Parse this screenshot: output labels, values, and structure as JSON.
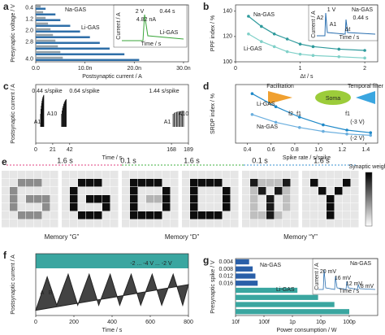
{
  "chart_data": [
    {
      "type": "hbar",
      "label": "a",
      "xlabel": "Postsynaptic current / A",
      "ylabel": "Presynaptic voltage / V",
      "categories": [
        "0.4",
        null,
        "1.2",
        null,
        "2.0",
        null,
        "2.8",
        null,
        null,
        "4.0"
      ],
      "series": [
        {
          "name": "Na-GAS",
          "color": "#9aa3a8",
          "values": [
            1e-09,
            1.5e-09,
            2e-09,
            2.5e-09,
            3e-09,
            3.5e-09,
            4e-09,
            4.5e-09,
            5e-09,
            5.5e-09
          ]
        },
        {
          "name": "Li-GAS",
          "color": "#2f6fa8",
          "values": [
            2e-09,
            4e-09,
            5e-09,
            7e-09,
            9e-09,
            1.1e-08,
            1.3e-08,
            1.5e-08,
            1.8e-08,
            2.1e-08
          ]
        }
      ],
      "xlim": [
        0,
        3.1e-08
      ],
      "xticks": [
        {
          "value": 0,
          "label": "0.0"
        },
        {
          "value": 1e-08,
          "label": "10.0n"
        },
        {
          "value": 2e-08,
          "label": "20.0n"
        },
        {
          "value": 3e-08,
          "label": "30.0n"
        }
      ],
      "annotations": [
        "2 V",
        "0.44 s",
        "4.82 nA",
        "Li-GAS",
        "Current / A",
        "Time / s"
      ]
    },
    {
      "type": "line",
      "label": "b",
      "xlabel": "Δt / s",
      "ylabel": "PPF index / %",
      "x": [
        0.2,
        0.4,
        0.6,
        0.8,
        1.0,
        1.2,
        1.6,
        2.0
      ],
      "series": [
        {
          "name": "Na-GAS",
          "color": "#2f9a9c",
          "values": [
            136,
            128,
            122,
            118,
            114,
            112,
            110,
            109
          ]
        },
        {
          "name": "Li-GAS",
          "color": "#7fd0c8",
          "values": [
            122,
            116,
            112,
            108,
            106,
            105,
            104,
            103
          ]
        }
      ],
      "xlim": [
        0,
        2.2
      ],
      "xticks": [
        0,
        1,
        2
      ],
      "ylim": [
        100,
        145
      ],
      "yticks": [
        100,
        120,
        140
      ],
      "annotations": [
        "Na-GAS",
        "1 V",
        "0.44 s",
        "A1",
        "A2",
        "Δt",
        "Current / A",
        "Time / s"
      ]
    },
    {
      "type": "spikes",
      "label": "c",
      "xlabel": "Time / s",
      "ylabel": "Postsynaptic current / A",
      "x": [
        6,
        6.44,
        6.88,
        7.32,
        7.76,
        8.2,
        8.64,
        9.08,
        9.52,
        9.96,
        32,
        32.64,
        33.28,
        33.92,
        34.56,
        35.2,
        35.84,
        36.48,
        37.12,
        37.76,
        170,
        171.44,
        172.88,
        174.32,
        175.76,
        177.2,
        178.64,
        180.08,
        181.52,
        182.96
      ],
      "values": [
        4e-09,
        5.5e-09,
        6.5e-09,
        7.3e-09,
        8e-09,
        8.5e-09,
        9e-09,
        9.3e-09,
        9.6e-09,
        9.8e-09,
        4e-09,
        5e-09,
        5.8e-09,
        6.4e-09,
        7e-09,
        7.4e-09,
        7.8e-09,
        8.1e-09,
        8.3e-09,
        8.5e-09,
        4e-09,
        4.3e-09,
        4.5e-09,
        4.6e-09,
        4.7e-09,
        4.8e-09,
        4.8e-09,
        4.9e-09,
        4.9e-09,
        5e-09
      ],
      "color": "#111111",
      "xlim": [
        0,
        189
      ],
      "ylim": [
        0,
        1.2e-08
      ],
      "xticks": [
        0,
        21,
        42,
        168,
        189
      ],
      "annotations": [
        "0.44 s/spike",
        "0.64 s/spike",
        "1.44 s/spike",
        "A1",
        "A10",
        "A1",
        "A10"
      ]
    },
    {
      "type": "line",
      "label": "d",
      "xlabel": "Spike rate / s/spike",
      "ylabel": "SRDP index / %",
      "x": [
        0.44,
        0.64,
        0.84,
        1.04,
        1.24,
        1.44
      ],
      "series": [
        {
          "name": "Li-GAS",
          "color": "#1e88c8",
          "values": [
            128,
            118,
            110,
            104,
            100,
            98
          ]
        },
        {
          "name": "Na-GAS",
          "color": "#6aaede",
          "values": [
            112,
            106,
            102,
            99,
            97,
            96
          ]
        }
      ],
      "xlim": [
        0.3,
        1.5
      ],
      "xticks": [
        0.4,
        0.6,
        0.8,
        {
          "value": 1,
          "label": "1.0"
        },
        1.2,
        1.4
      ],
      "ylim": [
        90,
        135
      ],
      "annotations": [
        "Facilitation",
        "Soma",
        "Temporal filter",
        "f2",
        "f1",
        "f1",
        "(-3 V)",
        "(-2 V)"
      ]
    },
    {
      "type": "area",
      "label": "f",
      "xlabel": "Time / s",
      "ylabel": "Postsynaptic current / A",
      "x": [
        0,
        60,
        110,
        170,
        220,
        280,
        330,
        390,
        440,
        500,
        550,
        610,
        660,
        720,
        770,
        800
      ],
      "values": [
        0.1,
        0.75,
        0.2,
        0.8,
        0.2,
        0.8,
        0.2,
        0.8,
        0.2,
        0.8,
        0.2,
        0.8,
        0.2,
        0.8,
        0.2,
        0.6
      ],
      "color": "#222222",
      "xlim": [
        0,
        800
      ],
      "ylim": [
        0,
        1.2
      ],
      "xticks": [
        0,
        200,
        400,
        600,
        800
      ],
      "annotations": [
        "A",
        "B",
        "-2 ... -4 V ... -2 V"
      ]
    },
    {
      "type": "hbar",
      "label": "g",
      "xlabel": "Power consumption / W",
      "ylabel": "Presynaptic spike / V",
      "log_x": true,
      "categories": [
        "0.004",
        "0.008",
        "0.012",
        "0.016",
        null,
        null,
        null,
        null
      ],
      "series": [
        {
          "name": "Na-GAS",
          "color": "#2a5fa8",
          "values": [
            3e-14,
            4e-14,
            5e-14,
            6e-14,
            null,
            null,
            null,
            null
          ]
        },
        {
          "name": "Li-GAS",
          "color": "#3aa6a0",
          "values": [
            null,
            null,
            null,
            null,
            1.5e-12,
            8e-12,
            3e-11,
            1e-10
          ]
        }
      ],
      "xlim": [
        1e-14,
        1e-09
      ],
      "xticks": [
        {
          "value": 1e-14,
          "label": "10f"
        },
        {
          "value": 1e-13,
          "label": "100f"
        },
        {
          "value": 1e-12,
          "label": "1p"
        },
        {
          "value": 1e-11,
          "label": "10p"
        },
        {
          "value": 1e-10,
          "label": "100p"
        }
      ],
      "annotations": [
        "Na-GAS",
        "20 mV",
        "16 mV",
        "12 mV",
        "8 mV",
        "Current / A",
        "Time / s"
      ]
    }
  ],
  "memory_panel": {
    "label": "e",
    "intervals": [
      "1.6 s",
      "0.1 s",
      "1.6 s",
      "0.1 s",
      "1.6 s"
    ],
    "captions": [
      "Memory “G”",
      "Memory “D”",
      "Memory “Y”"
    ],
    "colorbar": "Synaptic weight"
  }
}
